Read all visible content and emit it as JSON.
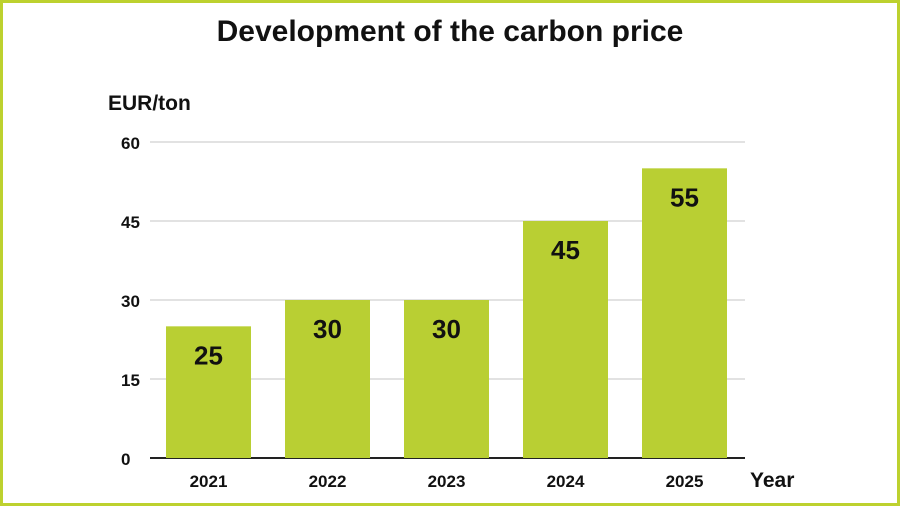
{
  "chart_data": {
    "type": "bar",
    "title": "Development of the carbon price",
    "xlabel": "Year",
    "ylabel": "EUR/ton",
    "categories": [
      "2021",
      "2022",
      "2023",
      "2024",
      "2025"
    ],
    "values": [
      25,
      30,
      30,
      45,
      55
    ],
    "ylim": [
      0,
      60
    ],
    "yticks": [
      0,
      15,
      30,
      45,
      60
    ],
    "grid": true,
    "bar_color": "#b9cf33",
    "border_color": "#bdd12f"
  }
}
